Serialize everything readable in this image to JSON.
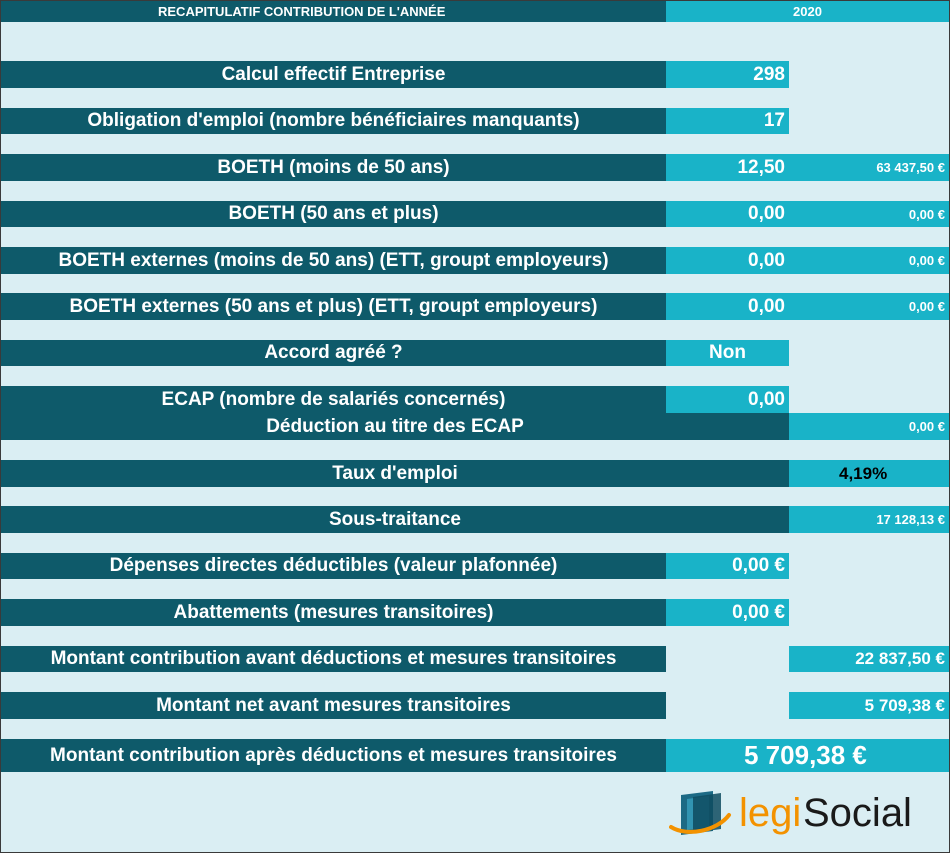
{
  "header": {
    "title": "RECAPITULATIF CONTRIBUTION DE L'ANNÉE",
    "year": "2020"
  },
  "rows": {
    "calcul_effectif": {
      "label": "Calcul effectif Entreprise",
      "value": "298"
    },
    "obligation_emploi": {
      "label": "Obligation d'emploi (nombre bénéficiaires manquants)",
      "value": "17"
    },
    "boeth_moins_50": {
      "label": "BOETH (moins de 50 ans)",
      "value": "12,50",
      "amount": "63 437,50 €"
    },
    "boeth_50_plus": {
      "label": "BOETH (50 ans et plus)",
      "value": "0,00",
      "amount": "0,00 €"
    },
    "boeth_ext_moins_50": {
      "label": "BOETH  externes (moins de 50 ans) (ETT, groupt employeurs)",
      "value": "0,00",
      "amount": "0,00 €"
    },
    "boeth_ext_50_plus": {
      "label": "BOETH  externes (50 ans et plus) (ETT, groupt employeurs)",
      "value": "0,00",
      "amount": "0,00 €"
    },
    "accord_agree": {
      "label": "Accord agréé ?",
      "value": "Non"
    },
    "ecap": {
      "label": "ECAP (nombre de salariés concernés)",
      "value": "0,00"
    },
    "deduction_ecap": {
      "label": "Déduction au titre des ECAP",
      "amount": "0,00 €"
    },
    "taux_emploi": {
      "label": "Taux d'emploi",
      "amount": "4,19%"
    },
    "sous_traitance": {
      "label": "Sous-traitance",
      "amount": "17 128,13 €"
    },
    "depenses_directes": {
      "label": "Dépenses directes déductibles (valeur plafonnée)",
      "value": "0,00 €"
    },
    "abattements": {
      "label": "Abattements (mesures transitoires)",
      "value": "0,00 €"
    },
    "montant_avant_deductions": {
      "label": "Montant contribution avant déductions et mesures transitoires",
      "amount": "22 837,50 €"
    },
    "montant_net": {
      "label": "Montant net avant mesures transitoires",
      "amount": "5 709,38 €"
    },
    "montant_apres_deductions": {
      "label": "Montant contribution après déductions et mesures transitoires",
      "amount": "5 709,38 €"
    }
  },
  "logo": {
    "text_legi": "legi",
    "text_social": "Social"
  },
  "colors": {
    "background": "#daeef3",
    "label_dark": "#0e5a6a",
    "value_cyan": "#19b3c8",
    "logo_orange": "#f39200",
    "logo_teal": "#1c6a85",
    "logo_text": "#1a1a1a"
  }
}
